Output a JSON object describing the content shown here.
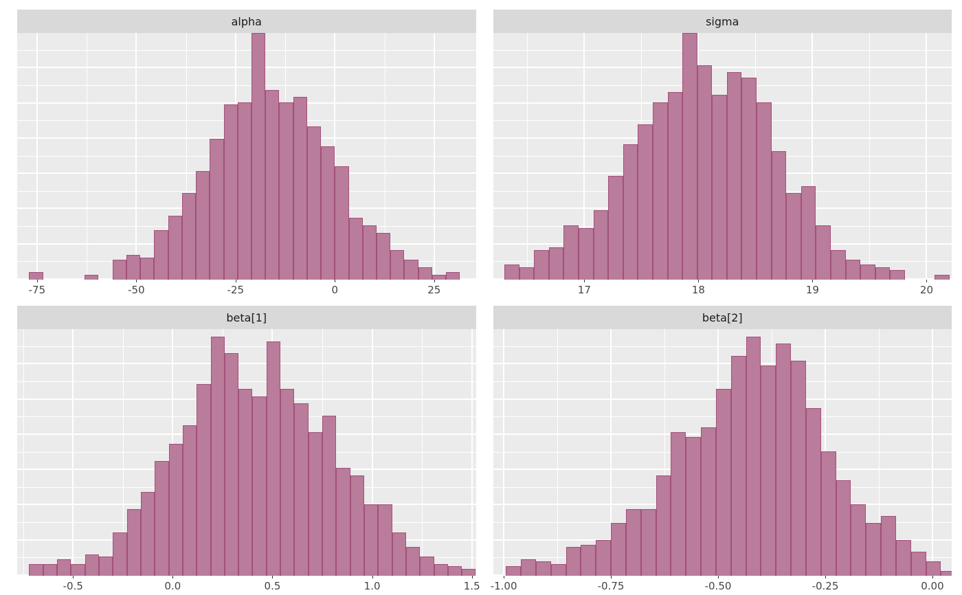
{
  "figure": {
    "kind": "faceted-histogram-grid",
    "facets": [
      "alpha",
      "sigma",
      "beta[1]",
      "beta[2]"
    ]
  },
  "style": {
    "panel_bg": "#EBEBEB",
    "strip_bg": "#D9D9D9",
    "strip_text_color": "#1A1A1A",
    "grid_color": "#FFFFFF",
    "bar_fill": "#B97C9B",
    "bar_stroke": "#A25079",
    "axis_text_color": "#444444",
    "tick_color": "#333333"
  },
  "chart_data": [
    {
      "type": "histogram",
      "title": "alpha",
      "xlabel": "",
      "ylabel": "",
      "legend": "none",
      "grid": true,
      "xlim": [
        -80,
        35.5
      ],
      "x_ticks": [
        -75,
        -50,
        -25,
        0,
        25
      ],
      "x_tick_labels": [
        "-75",
        "-50",
        "-25",
        "0",
        "25"
      ],
      "bin_start": -77,
      "bin_width": 3.5,
      "counts": [
        3,
        0,
        0,
        0,
        2,
        0,
        8,
        10,
        9,
        20,
        26,
        35,
        44,
        57,
        71,
        72,
        100,
        77,
        72,
        74,
        62,
        54,
        46,
        25,
        22,
        19,
        12,
        8,
        5,
        2,
        3
      ],
      "y_gridline_steps": 7,
      "ymax_frac": 1.0
    },
    {
      "type": "histogram",
      "title": "sigma",
      "xlabel": "",
      "ylabel": "",
      "legend": "none",
      "grid": true,
      "xlim": [
        16.2,
        20.22
      ],
      "x_ticks": [
        17,
        18,
        19,
        20
      ],
      "x_tick_labels": [
        "17",
        "18",
        "19",
        "20"
      ],
      "bin_start": 16.3,
      "bin_width": 0.13,
      "counts": [
        6,
        5,
        12,
        13,
        22,
        21,
        28,
        42,
        55,
        63,
        72,
        76,
        100,
        87,
        75,
        84,
        82,
        72,
        52,
        35,
        38,
        22,
        12,
        8,
        6,
        5,
        4,
        0,
        0,
        2
      ],
      "y_gridline_steps": 7,
      "ymax_frac": 1.0
    },
    {
      "type": "histogram",
      "title": "beta[1]",
      "xlabel": "",
      "ylabel": "",
      "legend": "none",
      "grid": true,
      "xlim": [
        -0.78,
        1.52
      ],
      "x_ticks": [
        -0.5,
        0.0,
        0.5,
        1.0,
        1.5
      ],
      "x_tick_labels": [
        "-0.5",
        "0.0",
        "0.5",
        "1.0",
        "1.5"
      ],
      "bin_start": -0.72,
      "bin_width": 0.07,
      "counts": [
        5,
        5,
        7,
        5,
        9,
        8,
        18,
        28,
        35,
        48,
        55,
        63,
        80,
        100,
        93,
        78,
        75,
        98,
        78,
        72,
        60,
        67,
        45,
        42,
        30,
        30,
        18,
        12,
        8,
        5,
        4,
        3
      ],
      "y_gridline_steps": 7,
      "ymax_frac": 0.97
    },
    {
      "type": "histogram",
      "title": "beta[2]",
      "xlabel": "",
      "ylabel": "",
      "legend": "none",
      "grid": true,
      "xlim": [
        -1.025,
        0.045
      ],
      "x_ticks": [
        -1.0,
        -0.75,
        -0.5,
        -0.25,
        0.0
      ],
      "x_tick_labels": [
        "-1.00",
        "-0.75",
        "-0.50",
        "-0.25",
        "0.00"
      ],
      "bin_start": -0.995,
      "bin_width": 0.035,
      "counts": [
        4,
        7,
        6,
        5,
        12,
        13,
        15,
        22,
        28,
        28,
        42,
        60,
        58,
        62,
        78,
        92,
        100,
        88,
        97,
        90,
        70,
        52,
        40,
        30,
        22,
        25,
        15,
        10,
        6,
        2
      ],
      "y_gridline_steps": 7,
      "ymax_frac": 0.97
    }
  ]
}
